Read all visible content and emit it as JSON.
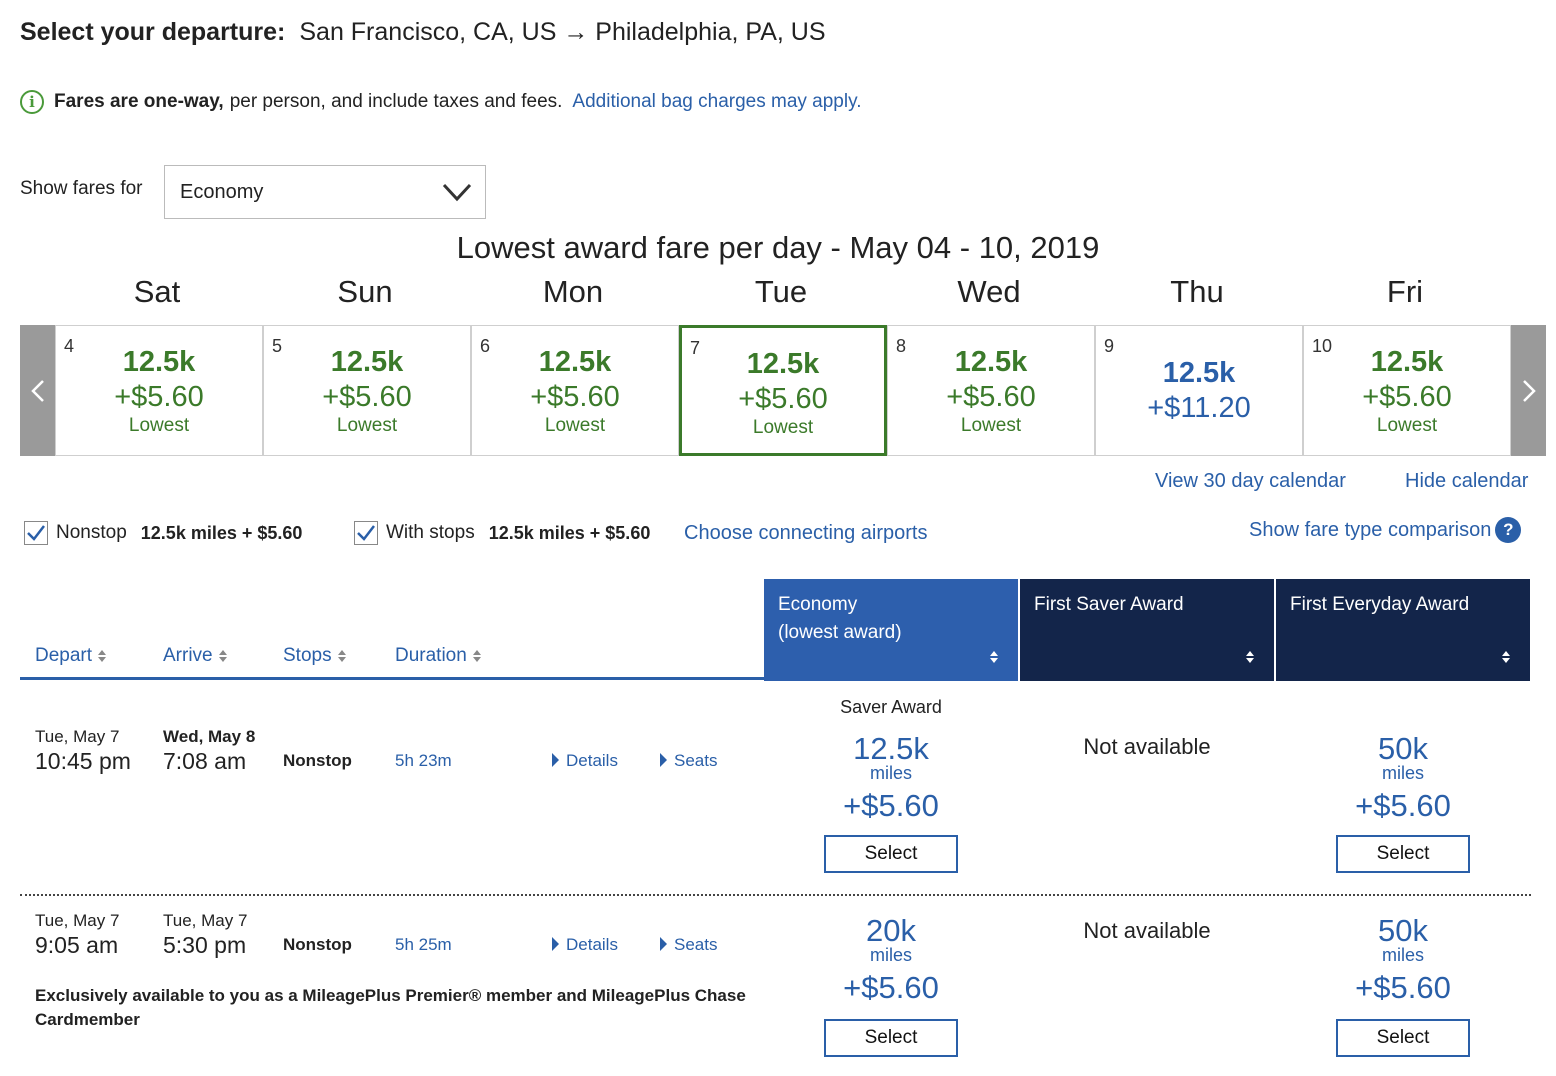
{
  "header": {
    "label": "Select your departure:",
    "route": "San Francisco, CA, US → Philadelphia, PA, US"
  },
  "info": {
    "bold": "Fares are one-way,",
    "text": "per person, and include taxes and fees.",
    "link": "Additional bag charges may apply."
  },
  "fare_select": {
    "label": "Show fares for",
    "value": "Economy"
  },
  "calendar": {
    "title": "Lowest award fare per day - May 04 - 10, 2019",
    "days": [
      {
        "name": "Sat",
        "num": "4",
        "miles": "12.5k",
        "price": "+$5.60",
        "tag": "Lowest"
      },
      {
        "name": "Sun",
        "num": "5",
        "miles": "12.5k",
        "price": "+$5.60",
        "tag": "Lowest"
      },
      {
        "name": "Mon",
        "num": "6",
        "miles": "12.5k",
        "price": "+$5.60",
        "tag": "Lowest"
      },
      {
        "name": "Tue",
        "num": "7",
        "miles": "12.5k",
        "price": "+$5.60",
        "tag": "Lowest"
      },
      {
        "name": "Wed",
        "num": "8",
        "miles": "12.5k",
        "price": "+$5.60",
        "tag": "Lowest"
      },
      {
        "name": "Thu",
        "num": "9",
        "miles": "12.5k",
        "price": "+$11.20",
        "tag": ""
      },
      {
        "name": "Fri",
        "num": "10",
        "miles": "12.5k",
        "price": "+$5.60",
        "tag": "Lowest"
      }
    ],
    "view30": "View 30 day calendar",
    "hide": "Hide calendar"
  },
  "filters": {
    "nonstop_label": "Nonstop",
    "nonstop_value": "12.5k miles + $5.60",
    "stops_label": "With stops",
    "stops_value": "12.5k miles + $5.60",
    "connect_link": "Choose connecting airports",
    "compare_link": "Show fare type comparison"
  },
  "table": {
    "cols": {
      "depart": "Depart",
      "arrive": "Arrive",
      "stops": "Stops",
      "duration": "Duration"
    },
    "fare_cols": [
      {
        "line1": "Economy",
        "line2": "(lowest award)",
        "color": "#2d5fad"
      },
      {
        "line1": "First Saver Award",
        "line2": "",
        "color": "#13254a"
      },
      {
        "line1": "First Everyday Award",
        "line2": "",
        "color": "#13254a"
      }
    ],
    "rows": [
      {
        "dep_date": "Tue, May 7",
        "dep_time": "10:45 pm",
        "arr_date": "Wed, May 8",
        "arr_time": "7:08 am",
        "stops": "Nonstop",
        "duration": "5h 23m",
        "details": "Details",
        "seats": "Seats",
        "econ_label": "Saver Award",
        "econ_miles": "12.5k",
        "econ_unit": "miles",
        "econ_price": "+$5.60",
        "econ_btn": "Select",
        "saver_na": "Not available",
        "every_miles": "50k",
        "every_unit": "miles",
        "every_price": "+$5.60",
        "every_btn": "Select",
        "note": ""
      },
      {
        "dep_date": "Tue, May 7",
        "dep_time": "9:05 am",
        "arr_date": "Tue, May 7",
        "arr_time": "5:30 pm",
        "stops": "Nonstop",
        "duration": "5h 25m",
        "details": "Details",
        "seats": "Seats",
        "econ_label": "",
        "econ_miles": "20k",
        "econ_unit": "miles",
        "econ_price": "+$5.60",
        "econ_btn": "Select",
        "saver_na": "Not available",
        "every_miles": "50k",
        "every_unit": "miles",
        "every_price": "+$5.60",
        "every_btn": "Select",
        "note": "Exclusively available to you as a MileagePlus Premier® member and MileagePlus Chase Cardmember"
      }
    ]
  },
  "colors": {
    "green": "#3b7a2a",
    "blue": "#2a5fa8",
    "navy": "#13254a"
  }
}
